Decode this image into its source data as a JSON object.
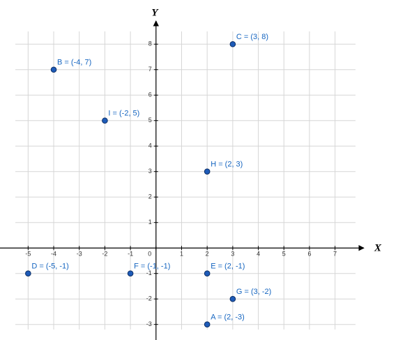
{
  "chart_data": {
    "type": "scatter",
    "x_label": "X",
    "y_label": "Y",
    "point_labels": [
      "A = (2, -3)",
      "B = (-4, 7)",
      "C = (3, 8)",
      "D = (-5, -1)",
      "E = (2, -1)",
      "F = (-1, -1)",
      "G = (3, -2)",
      "H = (2, 3)",
      "I = (-2, 5)"
    ],
    "x": [
      2,
      -4,
      3,
      -5,
      2,
      -1,
      3,
      2,
      -2
    ],
    "values": [
      -3,
      7,
      8,
      -1,
      -1,
      -1,
      -2,
      3,
      5
    ],
    "color": "#1e5bb8",
    "xlim": [
      -5.5,
      7.8
    ],
    "ylim": [
      -3.2,
      8.5
    ],
    "xticks": [
      -5,
      -4,
      -3,
      -2,
      -1,
      0,
      1,
      2,
      3,
      4,
      5,
      6,
      7
    ],
    "yticks": [
      -3,
      -2,
      -1,
      1,
      2,
      3,
      4,
      5,
      6,
      7,
      8
    ],
    "grid": true
  }
}
